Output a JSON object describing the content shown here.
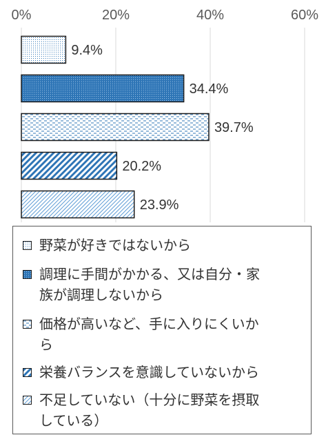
{
  "chart_data": {
    "type": "bar",
    "orientation": "horizontal",
    "title": "",
    "xlabel": "",
    "ylabel": "",
    "xlim": [
      0,
      60
    ],
    "x_ticks": [
      "0%",
      "20%",
      "40%",
      "60%"
    ],
    "grid": true,
    "legend_position": "bottom",
    "categories": [
      "野菜が好きではないから",
      "調理に手間がかかる、又は自分・家族が調理しないから",
      "価格が高いなど、手に入りにくいから",
      "栄養バランスを意識していないから",
      "不足していない（十分に野菜を摂取している）"
    ],
    "values": [
      9.4,
      34.4,
      39.7,
      20.2,
      23.9
    ],
    "value_labels": [
      "9.4%",
      "34.4%",
      "39.7%",
      "20.2%",
      "23.9%"
    ],
    "series_colors": [
      "#a9c9e6",
      "#2e75b6",
      "#bdd7ee",
      "#2e75b6",
      "#bdd7ee"
    ],
    "patterns": [
      "dots-fine",
      "dots-dense",
      "dashed-horizontal",
      "diagonal-wide",
      "diagonal-fine"
    ]
  },
  "legend": {
    "items": [
      {
        "lines": [
          "野菜が好きではないから"
        ]
      },
      {
        "lines": [
          "調理に手間がかかる、又は自分・家",
          "族が調理しないから"
        ]
      },
      {
        "lines": [
          "価格が高いなど、手に入りにくいか",
          "ら"
        ]
      },
      {
        "lines": [
          "栄養バランスを意識していないから"
        ]
      },
      {
        "lines": [
          "不足していない（十分に野菜を摂取",
          "している）"
        ]
      }
    ]
  }
}
